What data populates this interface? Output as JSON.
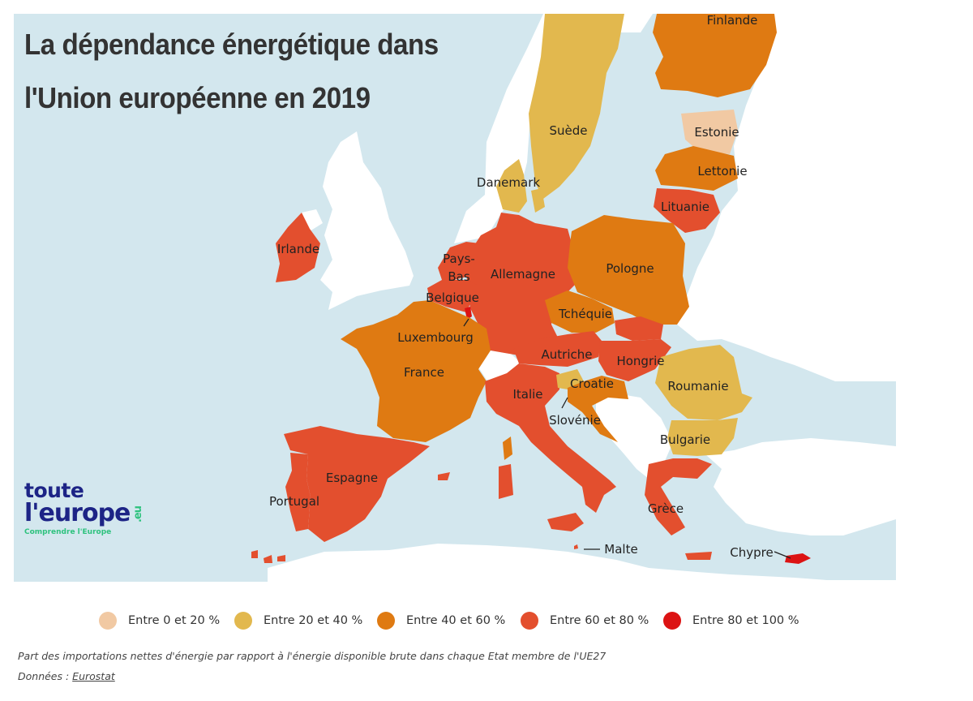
{
  "title_line1": "La dépendance énergétique dans",
  "title_line2": "l'Union européenne en 2019",
  "colors": {
    "sea": "#d3e7ee",
    "nonEU": "#ffffff",
    "band1": "#f1c9a3",
    "band2": "#e2b84e",
    "band3": "#df7a12",
    "band4": "#e34f2e",
    "band5": "#dc1313"
  },
  "countries": {
    "finlande": "Finlande",
    "suede": "Suède",
    "estonie": "Estonie",
    "lettonie": "Lettonie",
    "lituanie": "Lituanie",
    "danemark": "Danemark",
    "irlande": "Irlande",
    "pays_bas_1": "Pays-",
    "pays_bas_2": "Bas",
    "belgique": "Belgique",
    "luxembourg": "Luxembourg",
    "allemagne": "Allemagne",
    "pologne": "Pologne",
    "tchequie": "Tchéquie",
    "autriche": "Autriche",
    "hongrie": "Hongrie",
    "roumanie": "Roumanie",
    "france": "France",
    "italie": "Italie",
    "croatie": "Croatie",
    "slovenie": "Slovénie",
    "bulgarie": "Bulgarie",
    "espagne": "Espagne",
    "portugal": "Portugal",
    "grece": "Grèce",
    "malte": "Malte",
    "chypre": "Chypre"
  },
  "legend": [
    {
      "label": "Entre 0 et 20 %",
      "color": "#f1c9a3"
    },
    {
      "label": "Entre 20 et 40 %",
      "color": "#e2b84e"
    },
    {
      "label": "Entre 40 et 60 %",
      "color": "#df7a12"
    },
    {
      "label": "Entre 60 et 80 %",
      "color": "#e34f2e"
    },
    {
      "label": "Entre 80 et 100 %",
      "color": "#dc1313"
    }
  ],
  "note": "Part des importations nettes d'énergie par rapport à l'énergie disponible brute dans chaque Etat membre de l'UE27",
  "source_prefix": "Données : ",
  "source_link": "Eurostat",
  "logo": {
    "line1": "toute",
    "line2": "l'europe",
    "suffix": ".eu",
    "tagline": "Comprendre l'Europe"
  }
}
